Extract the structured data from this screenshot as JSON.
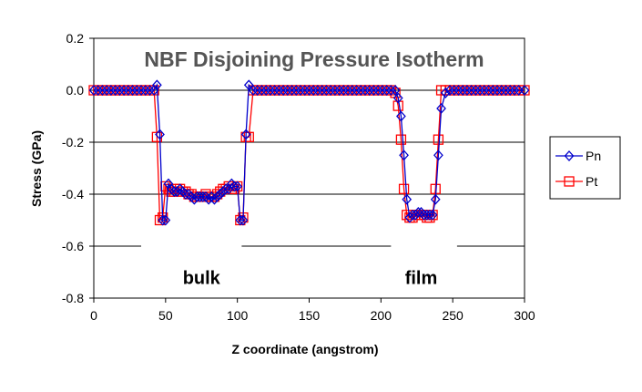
{
  "chart_data": {
    "type": "line",
    "title": "NBF Disjoining Pressure Isotherm",
    "xlabel": "Z coordinate (angstrom)",
    "ylabel": "Stress (GPa)",
    "xlim": [
      0,
      300
    ],
    "ylim": [
      -0.8,
      0.2
    ],
    "x_ticks": [
      "0",
      "50",
      "100",
      "150",
      "200",
      "250",
      "300"
    ],
    "y_ticks": [
      "0.2",
      "0.0",
      "-0.2",
      "-0.4",
      "-0.6",
      "-0.8"
    ],
    "grid": "horizontal",
    "legend_position": "right",
    "annotations": [
      {
        "text": "bulk",
        "x": 75,
        "y": -0.65
      },
      {
        "text": "film",
        "x": 228,
        "y": -0.65
      }
    ],
    "reference_lines": [
      {
        "y": -0.6,
        "gaps_x": [
          [
            33,
            103
          ],
          [
            207,
            253
          ]
        ]
      }
    ],
    "series": [
      {
        "name": "Pn",
        "color": "#0000cc",
        "marker": "diamond",
        "x": [
          0,
          3,
          6,
          9,
          12,
          15,
          18,
          21,
          24,
          27,
          30,
          33,
          36,
          39,
          42,
          44,
          46,
          48,
          50,
          52,
          54,
          56,
          58,
          60,
          62,
          64,
          66,
          68,
          70,
          72,
          74,
          76,
          78,
          80,
          82,
          84,
          86,
          88,
          90,
          92,
          94,
          96,
          98,
          100,
          102,
          104,
          106,
          108,
          111,
          114,
          117,
          120,
          123,
          126,
          129,
          132,
          135,
          138,
          141,
          144,
          147,
          150,
          153,
          156,
          159,
          162,
          165,
          168,
          171,
          174,
          177,
          180,
          183,
          186,
          189,
          192,
          195,
          198,
          201,
          204,
          207,
          210,
          212,
          214,
          216,
          218,
          220,
          222,
          224,
          226,
          228,
          230,
          232,
          234,
          236,
          238,
          240,
          242,
          245,
          248,
          251,
          254,
          257,
          260,
          263,
          266,
          269,
          272,
          275,
          278,
          281,
          284,
          287,
          290,
          293,
          296,
          300
        ],
        "y": [
          0,
          0,
          0,
          0,
          0,
          0,
          0,
          0,
          0,
          0,
          0,
          0,
          0,
          0,
          0,
          0.02,
          -0.17,
          -0.5,
          -0.5,
          -0.36,
          -0.38,
          -0.39,
          -0.39,
          -0.38,
          -0.39,
          -0.4,
          -0.4,
          -0.41,
          -0.42,
          -0.41,
          -0.41,
          -0.41,
          -0.41,
          -0.42,
          -0.41,
          -0.42,
          -0.41,
          -0.4,
          -0.39,
          -0.38,
          -0.38,
          -0.36,
          -0.37,
          -0.37,
          -0.5,
          -0.5,
          -0.17,
          0.02,
          0,
          0,
          0,
          0,
          0,
          0,
          0,
          0,
          0,
          0,
          0,
          0,
          0,
          0,
          0,
          0,
          0,
          0,
          0,
          0,
          0,
          0,
          0,
          0,
          0,
          0,
          0,
          0,
          0,
          0,
          0,
          0,
          0,
          0,
          -0.03,
          -0.1,
          -0.25,
          -0.42,
          -0.49,
          -0.48,
          -0.48,
          -0.47,
          -0.47,
          -0.48,
          -0.48,
          -0.48,
          -0.48,
          -0.42,
          -0.25,
          -0.07,
          -0.01,
          0,
          0,
          0,
          0,
          0,
          0,
          0,
          0,
          0,
          0,
          0,
          0,
          0,
          0,
          0,
          0,
          0,
          0
        ]
      },
      {
        "name": "Pt",
        "color": "#ff0000",
        "marker": "square",
        "x": [
          0,
          3,
          6,
          9,
          12,
          15,
          18,
          21,
          24,
          27,
          30,
          33,
          36,
          39,
          42,
          44,
          46,
          48,
          50,
          52,
          54,
          56,
          58,
          60,
          62,
          64,
          66,
          68,
          70,
          72,
          74,
          76,
          78,
          80,
          82,
          84,
          86,
          88,
          90,
          92,
          94,
          96,
          98,
          100,
          102,
          104,
          106,
          108,
          111,
          114,
          117,
          120,
          123,
          126,
          129,
          132,
          135,
          138,
          141,
          144,
          147,
          150,
          153,
          156,
          159,
          162,
          165,
          168,
          171,
          174,
          177,
          180,
          183,
          186,
          189,
          192,
          195,
          198,
          201,
          204,
          207,
          210,
          212,
          214,
          216,
          218,
          220,
          222,
          224,
          226,
          228,
          230,
          232,
          234,
          236,
          238,
          240,
          242,
          245,
          248,
          251,
          254,
          257,
          260,
          263,
          266,
          269,
          272,
          275,
          278,
          281,
          284,
          287,
          290,
          293,
          296,
          300
        ],
        "y": [
          0,
          0,
          0,
          0,
          0,
          0,
          0,
          0,
          0,
          0,
          0,
          0,
          0,
          0,
          0,
          -0.18,
          -0.5,
          -0.49,
          -0.37,
          -0.38,
          -0.39,
          -0.39,
          -0.38,
          -0.38,
          -0.39,
          -0.39,
          -0.4,
          -0.4,
          -0.41,
          -0.41,
          -0.41,
          -0.41,
          -0.4,
          -0.41,
          -0.41,
          -0.41,
          -0.4,
          -0.39,
          -0.38,
          -0.38,
          -0.37,
          -0.38,
          -0.38,
          -0.37,
          -0.5,
          -0.49,
          -0.18,
          -0.18,
          0,
          0,
          0,
          0,
          0,
          0,
          0,
          0,
          0,
          0,
          0,
          0,
          0,
          0,
          0,
          0,
          0,
          0,
          0,
          0,
          0,
          0,
          0,
          0,
          0,
          0,
          0,
          0,
          0,
          0,
          0,
          0,
          0,
          -0.01,
          -0.06,
          -0.19,
          -0.38,
          -0.48,
          -0.49,
          -0.49,
          -0.48,
          -0.48,
          -0.48,
          -0.48,
          -0.49,
          -0.49,
          -0.48,
          -0.38,
          -0.19,
          0,
          0,
          0,
          0,
          0,
          0,
          0,
          0,
          0,
          0,
          0,
          0,
          0,
          0,
          0,
          0,
          0,
          0,
          0,
          0
        ]
      }
    ]
  }
}
